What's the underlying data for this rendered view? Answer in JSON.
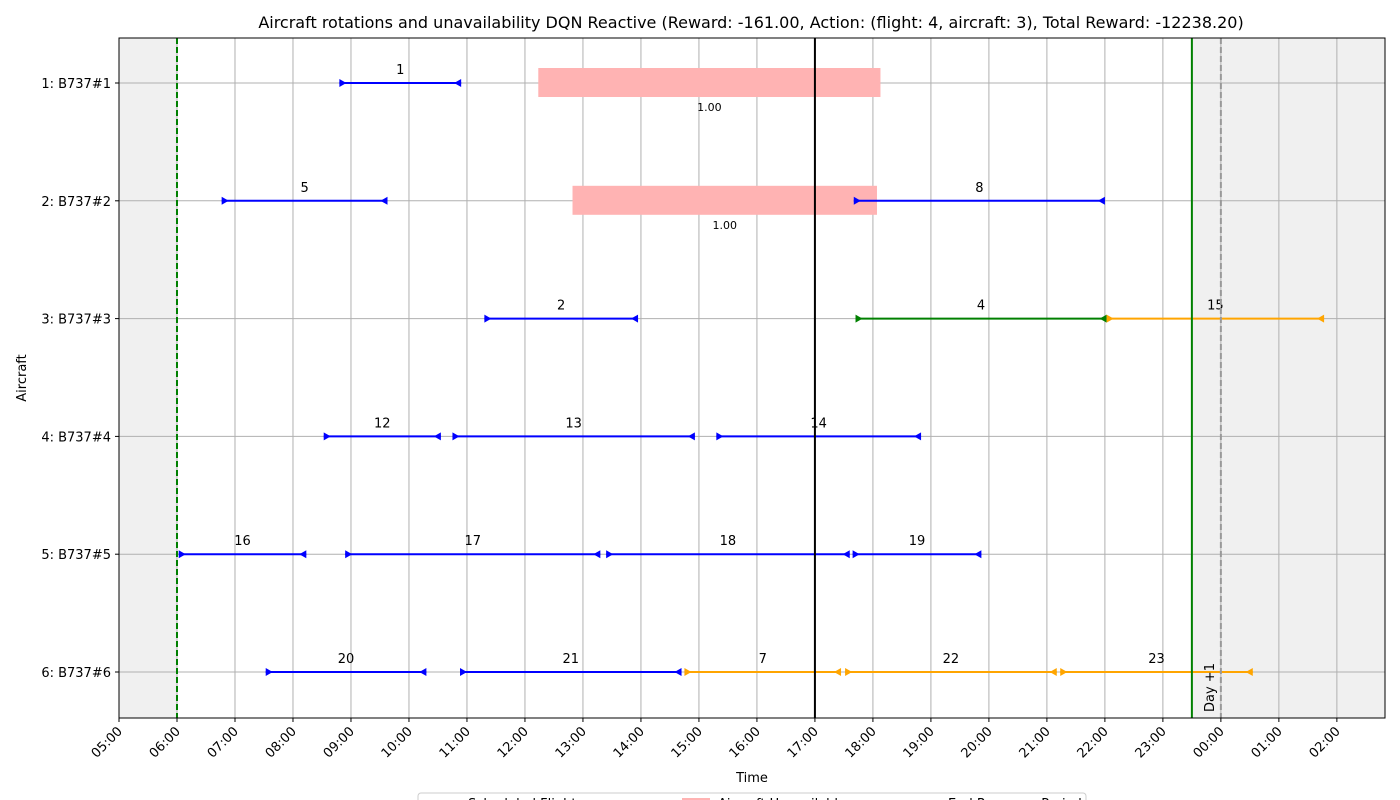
{
  "chart_data": {
    "type": "gantt",
    "title": "Aircraft rotations and unavailability DQN Reactive (Reward: -161.00, Action: (flight: 4, aircraft: 3), Total Reward: -12238.20)",
    "xlabel": "Time",
    "ylabel": "Aircraft",
    "xlim_hours": [
      5.0,
      26.83
    ],
    "x_ticks": [
      "05:00",
      "06:00",
      "07:00",
      "08:00",
      "09:00",
      "10:00",
      "11:00",
      "12:00",
      "13:00",
      "14:00",
      "15:00",
      "16:00",
      "17:00",
      "18:00",
      "19:00",
      "20:00",
      "21:00",
      "22:00",
      "23:00",
      "00:00",
      "01:00",
      "02:00"
    ],
    "aircraft": [
      "1: B737#1",
      "2: B737#2",
      "3: B737#3",
      "4: B737#4",
      "5: B737#5",
      "6: B737#6"
    ],
    "colors": {
      "scheduled": "#0000ff",
      "swapped": "#008000",
      "delayed": "#ffa500",
      "unavailability": "#ffb3b3",
      "grey_area": "#f0f0f0",
      "grid": "#b0b0b0"
    },
    "flights": [
      {
        "id": "1",
        "aircraft": 0,
        "start": 8.8,
        "end": 10.9,
        "status": "scheduled"
      },
      {
        "id": "5",
        "aircraft": 1,
        "start": 6.77,
        "end": 9.63,
        "status": "scheduled"
      },
      {
        "id": "8",
        "aircraft": 1,
        "start": 17.67,
        "end": 22.0,
        "status": "scheduled"
      },
      {
        "id": "2",
        "aircraft": 2,
        "start": 11.3,
        "end": 13.95,
        "status": "scheduled"
      },
      {
        "id": "4",
        "aircraft": 2,
        "start": 17.7,
        "end": 22.03,
        "status": "swapped"
      },
      {
        "id": "15",
        "aircraft": 2,
        "start": 22.03,
        "end": 25.78,
        "status": "delayed"
      },
      {
        "id": "12",
        "aircraft": 3,
        "start": 8.53,
        "end": 10.55,
        "status": "scheduled"
      },
      {
        "id": "13",
        "aircraft": 3,
        "start": 10.75,
        "end": 14.93,
        "status": "scheduled"
      },
      {
        "id": "14",
        "aircraft": 3,
        "start": 15.3,
        "end": 18.83,
        "status": "scheduled"
      },
      {
        "id": "16",
        "aircraft": 4,
        "start": 6.03,
        "end": 8.23,
        "status": "scheduled"
      },
      {
        "id": "17",
        "aircraft": 4,
        "start": 8.9,
        "end": 13.3,
        "status": "scheduled"
      },
      {
        "id": "18",
        "aircraft": 4,
        "start": 13.4,
        "end": 17.6,
        "status": "scheduled"
      },
      {
        "id": "19",
        "aircraft": 4,
        "start": 17.65,
        "end": 19.87,
        "status": "scheduled"
      },
      {
        "id": "20",
        "aircraft": 5,
        "start": 7.53,
        "end": 10.3,
        "status": "scheduled"
      },
      {
        "id": "21",
        "aircraft": 5,
        "start": 10.88,
        "end": 14.7,
        "status": "scheduled"
      },
      {
        "id": "7",
        "aircraft": 5,
        "start": 14.75,
        "end": 17.45,
        "status": "delayed"
      },
      {
        "id": "22",
        "aircraft": 5,
        "start": 17.52,
        "end": 21.17,
        "status": "delayed"
      },
      {
        "id": "23",
        "aircraft": 5,
        "start": 21.23,
        "end": 24.55,
        "status": "delayed"
      }
    ],
    "unavailability": [
      {
        "aircraft": 0,
        "start": 12.23,
        "end": 18.13,
        "label": "1.00"
      },
      {
        "aircraft": 1,
        "start": 12.82,
        "end": 18.07,
        "label": "1.00"
      }
    ],
    "current_time": 17.0,
    "recovery_start": 6.0,
    "recovery_end": 23.5,
    "day_boundary": 24.0,
    "day_label": "Day +1",
    "legend": [
      {
        "label": "Scheduled Flight",
        "kind": "line",
        "color": "#0000ff"
      },
      {
        "label": "Aircraft Unavailable",
        "kind": "patch",
        "color": "#ffb3b3"
      },
      {
        "label": "End Recovery Period",
        "kind": "line",
        "color": "#008000"
      }
    ]
  }
}
